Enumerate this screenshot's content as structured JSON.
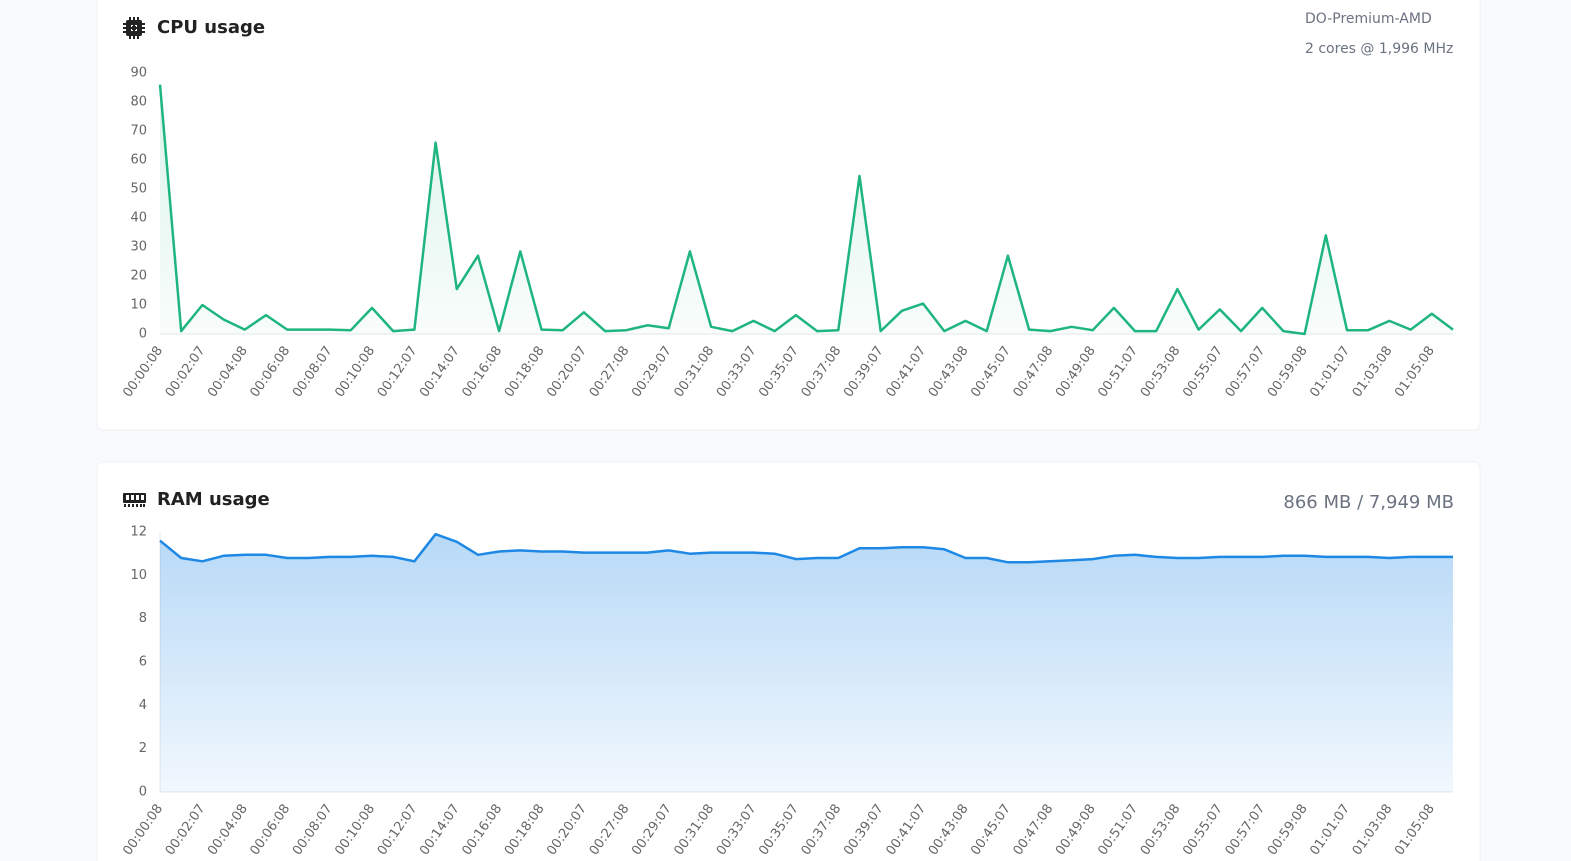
{
  "chart_data": [
    {
      "type": "area",
      "title": "CPU usage",
      "annotations": [
        "DO-Premium-AMD",
        "2 cores @ 1,996 MHz"
      ],
      "categories": [
        "00:00:08",
        null,
        "00:02:07",
        null,
        "00:04:08",
        null,
        "00:06:08",
        null,
        "00:08:07",
        null,
        "00:10:08",
        null,
        "00:12:07",
        null,
        "00:14:07",
        null,
        "00:16:08",
        null,
        "00:18:08",
        null,
        "00:20:07",
        null,
        "00:27:08",
        null,
        "00:29:07",
        null,
        "00:31:08",
        null,
        "00:33:07",
        null,
        "00:35:07",
        null,
        "00:37:08",
        null,
        "00:39:07",
        null,
        "00:41:07",
        null,
        "00:43:08",
        null,
        "00:45:07",
        null,
        "00:47:08",
        null,
        "00:49:08",
        null,
        "00:51:07",
        null,
        "00:53:08",
        null,
        "00:55:07",
        null,
        "00:57:07",
        null,
        "00:59:08",
        null,
        "01:01:07",
        null,
        "01:03:08",
        null,
        "01:05:08",
        null
      ],
      "values": [
        86,
        1,
        10,
        5,
        1.5,
        6.5,
        1.5,
        1.5,
        1.5,
        1.3,
        9,
        1,
        1.5,
        66,
        15.5,
        27,
        1,
        28.5,
        1.5,
        1.3,
        7.5,
        1,
        1.3,
        3,
        2,
        28.5,
        2.5,
        1,
        4.5,
        1,
        6.5,
        1,
        1.3,
        54.5,
        1,
        8,
        10.5,
        1,
        4.5,
        1,
        27,
        1.5,
        1,
        2.5,
        1.3,
        9,
        1,
        1,
        15.5,
        1.5,
        8.5,
        1,
        9,
        1,
        0,
        34,
        1.3,
        1.3,
        4.5,
        1.5,
        7,
        1.5
      ],
      "color": "#1fb57e",
      "ylim": [
        0,
        90
      ],
      "yticks": [
        0,
        10,
        20,
        30,
        40,
        50,
        60,
        70,
        80,
        90
      ],
      "grid": false
    },
    {
      "type": "area",
      "title": "RAM usage",
      "annotations": [
        "866 MB / 7,949 MB"
      ],
      "categories": [
        "00:00:08",
        null,
        "00:02:07",
        null,
        "00:04:08",
        null,
        "00:06:08",
        null,
        "00:08:07",
        null,
        "00:10:08",
        null,
        "00:12:07",
        null,
        "00:14:07",
        null,
        "00:16:08",
        null,
        "00:18:08",
        null,
        "00:20:07",
        null,
        "00:27:08",
        null,
        "00:29:07",
        null,
        "00:31:08",
        null,
        "00:33:07",
        null,
        "00:35:07",
        null,
        "00:37:08",
        null,
        "00:39:07",
        null,
        "00:41:07",
        null,
        "00:43:08",
        null,
        "00:45:07",
        null,
        "00:47:08",
        null,
        "00:49:08",
        null,
        "00:51:07",
        null,
        "00:53:08",
        null,
        "00:55:07",
        null,
        "00:57:07",
        null,
        "00:59:08",
        null,
        "01:01:07",
        null,
        "01:03:08",
        null,
        "01:05:08",
        null
      ],
      "values": [
        11.6,
        10.8,
        10.65,
        10.9,
        10.95,
        10.95,
        10.8,
        10.8,
        10.85,
        10.85,
        10.9,
        10.85,
        10.65,
        11.9,
        11.55,
        10.95,
        11.1,
        11.15,
        11.1,
        11.1,
        11.05,
        11.05,
        11.05,
        11.05,
        11.15,
        11,
        11.05,
        11.05,
        11.05,
        11,
        10.75,
        10.8,
        10.8,
        11.25,
        11.25,
        11.3,
        11.3,
        11.2,
        10.8,
        10.8,
        10.6,
        10.6,
        10.65,
        10.7,
        10.75,
        10.9,
        10.95,
        10.85,
        10.8,
        10.8,
        10.85,
        10.85,
        10.85,
        10.9,
        10.9,
        10.85,
        10.85,
        10.85,
        10.8,
        10.85,
        10.85,
        10.85
      ],
      "color": "#1e88e5",
      "ylim": [
        0,
        12
      ],
      "yticks": [
        0,
        2,
        4,
        6,
        8,
        10,
        12
      ],
      "grid": false
    }
  ]
}
